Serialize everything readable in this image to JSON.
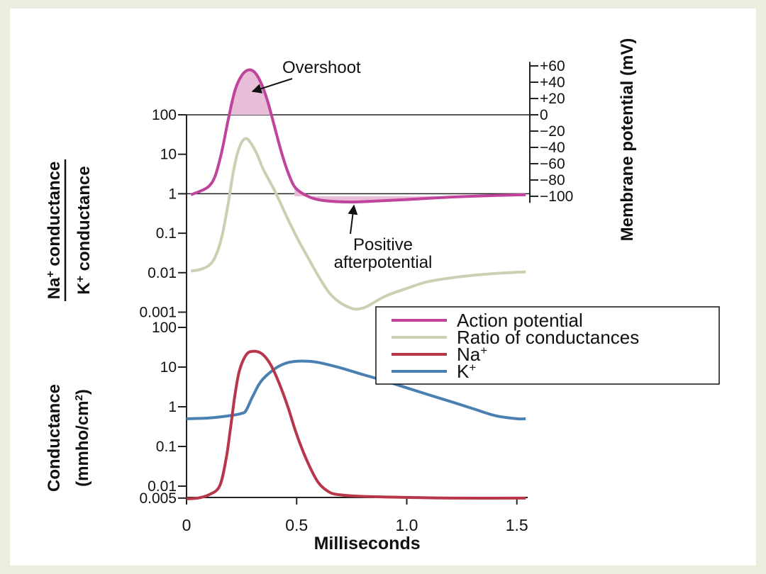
{
  "colors": {
    "action_potential": "#c0439c",
    "action_fill": "#e7bdd8",
    "ratio": "#c9d1b3",
    "na": "#b8364a",
    "k": "#4a7fb2",
    "axis": "#222222"
  },
  "chart_data": [
    {
      "type": "line",
      "panel": "top",
      "ylabel_numerator_main": "Na",
      "ylabel_numerator_sup": "+",
      "ylabel_numerator_rest": " conductance",
      "ylabel_denominator_main": "K",
      "ylabel_denominator_sup": "+",
      "ylabel_denominator_rest": " conductance",
      "y_scale": "log",
      "yticks": [
        "100",
        "10",
        "1",
        "0.1",
        "0.01",
        "0.001"
      ],
      "yticks_values": [
        100,
        10,
        1,
        0.1,
        0.01,
        0.001
      ],
      "y2label": "Membrane potential (mV)",
      "y2ticks": [
        "+60",
        "+40",
        "+20",
        "0",
        "−20",
        "−40",
        "−60",
        "−80",
        "−100"
      ],
      "y2ticks_values": [
        60,
        40,
        20,
        0,
        -20,
        -40,
        -60,
        -80,
        -100
      ],
      "annotations": {
        "overshoot": "Overshoot",
        "positive_line1": "Positive",
        "positive_line2": "afterpotential"
      },
      "series": [
        {
          "name": "Action potential",
          "axis": "mV",
          "points": [
            [
              0.02,
              -98
            ],
            [
              0.06,
              -94
            ],
            [
              0.1,
              -88
            ],
            [
              0.13,
              -75
            ],
            [
              0.16,
              -45
            ],
            [
              0.19,
              -5
            ],
            [
              0.22,
              30
            ],
            [
              0.25,
              48
            ],
            [
              0.28,
              55
            ],
            [
              0.31,
              52
            ],
            [
              0.34,
              38
            ],
            [
              0.37,
              15
            ],
            [
              0.4,
              -15
            ],
            [
              0.43,
              -45
            ],
            [
              0.46,
              -70
            ],
            [
              0.49,
              -88
            ],
            [
              0.53,
              -97
            ],
            [
              0.58,
              -103
            ],
            [
              0.65,
              -106
            ],
            [
              0.75,
              -107
            ],
            [
              0.85,
              -106
            ],
            [
              1.0,
              -104
            ],
            [
              1.2,
              -101
            ],
            [
              1.4,
              -99
            ],
            [
              1.54,
              -98
            ]
          ]
        },
        {
          "name": "Ratio of conductances",
          "axis": "ratio",
          "points": [
            [
              0.02,
              0.011
            ],
            [
              0.06,
              0.012
            ],
            [
              0.1,
              0.015
            ],
            [
              0.13,
              0.025
            ],
            [
              0.16,
              0.08
            ],
            [
              0.19,
              0.6
            ],
            [
              0.21,
              3
            ],
            [
              0.23,
              10
            ],
            [
              0.25,
              20
            ],
            [
              0.27,
              25
            ],
            [
              0.29,
              20
            ],
            [
              0.32,
              10
            ],
            [
              0.35,
              4
            ],
            [
              0.4,
              1.2
            ],
            [
              0.45,
              0.3
            ],
            [
              0.5,
              0.08
            ],
            [
              0.55,
              0.025
            ],
            [
              0.6,
              0.008
            ],
            [
              0.65,
              0.003
            ],
            [
              0.7,
              0.0017
            ],
            [
              0.75,
              0.00125
            ],
            [
              0.78,
              0.0012
            ],
            [
              0.82,
              0.0014
            ],
            [
              0.9,
              0.0025
            ],
            [
              1.0,
              0.004
            ],
            [
              1.1,
              0.006
            ],
            [
              1.25,
              0.008
            ],
            [
              1.4,
              0.0095
            ],
            [
              1.54,
              0.0105
            ]
          ]
        }
      ]
    },
    {
      "type": "line",
      "panel": "bottom",
      "ylabel_line1": "Conductance",
      "ylabel_line2_prefix": "(mmho/cm",
      "ylabel_line2_sup": "2",
      "ylabel_line2_suffix": ")",
      "y_scale": "log",
      "yticks": [
        "100",
        "10",
        "1",
        "0.1",
        "0.01",
        "0.005"
      ],
      "yticks_values": [
        100,
        10,
        1,
        0.1,
        0.01,
        0.005
      ],
      "xlabel": "Milliseconds",
      "xticks": [
        "0",
        "0.5",
        "1.0",
        "1.5"
      ],
      "xticks_values": [
        0,
        0.5,
        1.0,
        1.5
      ],
      "xlim": [
        0,
        1.55
      ],
      "series": [
        {
          "name": "Na",
          "name_sup": "+",
          "points": [
            [
              0,
              0.0048
            ],
            [
              0.05,
              0.005
            ],
            [
              0.1,
              0.006
            ],
            [
              0.15,
              0.01
            ],
            [
              0.18,
              0.05
            ],
            [
              0.2,
              0.3
            ],
            [
              0.22,
              2
            ],
            [
              0.24,
              8
            ],
            [
              0.27,
              20
            ],
            [
              0.3,
              25
            ],
            [
              0.34,
              22
            ],
            [
              0.38,
              12
            ],
            [
              0.42,
              4
            ],
            [
              0.46,
              1
            ],
            [
              0.5,
              0.2
            ],
            [
              0.55,
              0.04
            ],
            [
              0.6,
              0.012
            ],
            [
              0.65,
              0.007
            ],
            [
              0.7,
              0.006
            ],
            [
              0.8,
              0.0055
            ],
            [
              1.0,
              0.0052
            ],
            [
              1.2,
              0.005
            ],
            [
              1.54,
              0.005
            ]
          ]
        },
        {
          "name": "K",
          "name_sup": "+",
          "points": [
            [
              0,
              0.5
            ],
            [
              0.1,
              0.52
            ],
            [
              0.2,
              0.6
            ],
            [
              0.25,
              0.68
            ],
            [
              0.27,
              0.8
            ],
            [
              0.3,
              1.8
            ],
            [
              0.34,
              4.5
            ],
            [
              0.4,
              9
            ],
            [
              0.45,
              12.5
            ],
            [
              0.5,
              14
            ],
            [
              0.55,
              14
            ],
            [
              0.6,
              13
            ],
            [
              0.7,
              9.5
            ],
            [
              0.8,
              6.5
            ],
            [
              0.9,
              4.5
            ],
            [
              1.0,
              3
            ],
            [
              1.1,
              2
            ],
            [
              1.2,
              1.35
            ],
            [
              1.3,
              0.9
            ],
            [
              1.4,
              0.6
            ],
            [
              1.5,
              0.5
            ],
            [
              1.54,
              0.5
            ]
          ]
        }
      ]
    }
  ],
  "legend": {
    "placement": "right-middle",
    "items": [
      {
        "label": "Action potential",
        "sup": "",
        "color_key": "action_potential"
      },
      {
        "label": "Ratio of conductances",
        "sup": "",
        "color_key": "ratio"
      },
      {
        "label": "Na",
        "sup": "+",
        "color_key": "na"
      },
      {
        "label": "K",
        "sup": "+",
        "color_key": "k"
      }
    ]
  }
}
